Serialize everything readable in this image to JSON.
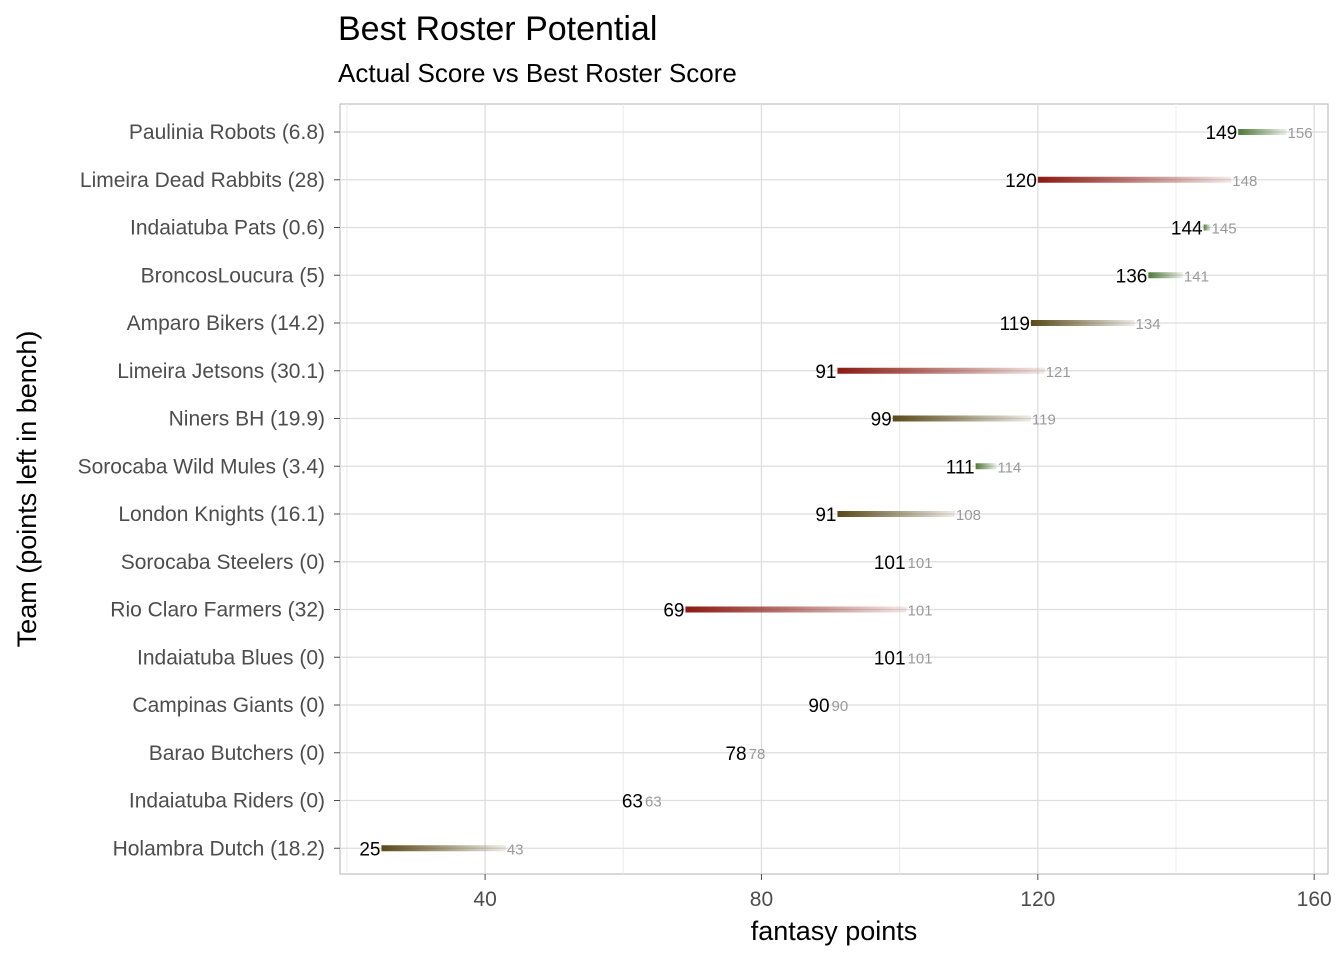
{
  "chart_data": {
    "type": "dumbbell",
    "title": "Best Roster Potential",
    "subtitle": "Actual Score vs Best Roster Score",
    "xlabel": "fantasy points",
    "ylabel": "Team (points left in bench)",
    "xlim": [
      19,
      162
    ],
    "xticks": [
      40,
      80,
      120,
      160
    ],
    "grid": true,
    "colors": {
      "low_gap": "#4f7a3a",
      "mid_gap": "#5a4a1a",
      "high_gap": "#8b1a12",
      "actual_label": "#000000",
      "best_label": "#9a9a9a",
      "panel_border": "#b3b3b3",
      "grid": "#dedede"
    },
    "rows": [
      {
        "team": "Paulinia Robots (6.8)",
        "actual": 149,
        "best": 156
      },
      {
        "team": "Limeira Dead Rabbits (28)",
        "actual": 120,
        "best": 148
      },
      {
        "team": "Indaiatuba Pats (0.6)",
        "actual": 144,
        "best": 145
      },
      {
        "team": "BroncosLoucura (5)",
        "actual": 136,
        "best": 141
      },
      {
        "team": "Amparo Bikers (14.2)",
        "actual": 119,
        "best": 134
      },
      {
        "team": "Limeira Jetsons (30.1)",
        "actual": 91,
        "best": 121
      },
      {
        "team": "Niners BH (19.9)",
        "actual": 99,
        "best": 119
      },
      {
        "team": "Sorocaba Wild Mules (3.4)",
        "actual": 111,
        "best": 114
      },
      {
        "team": "London Knights (16.1)",
        "actual": 91,
        "best": 108
      },
      {
        "team": "Sorocaba Steelers (0)",
        "actual": 101,
        "best": 101
      },
      {
        "team": "Rio Claro Farmers (32)",
        "actual": 69,
        "best": 101
      },
      {
        "team": "Indaiatuba Blues (0)",
        "actual": 101,
        "best": 101
      },
      {
        "team": "Campinas Giants (0)",
        "actual": 90,
        "best": 90
      },
      {
        "team": "Barao Butchers (0)",
        "actual": 78,
        "best": 78
      },
      {
        "team": "Indaiatuba Riders (0)",
        "actual": 63,
        "best": 63
      },
      {
        "team": "Holambra Dutch (18.2)",
        "actual": 25,
        "best": 43
      }
    ]
  }
}
